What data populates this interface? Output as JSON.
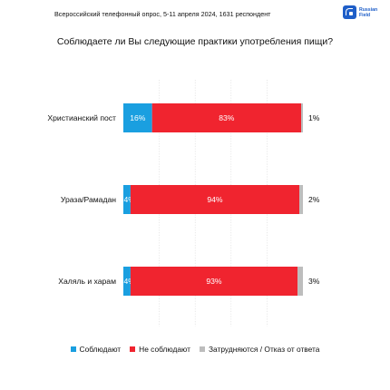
{
  "header": {
    "survey_info": "Всероссийский телефонный опрос, 5-11 апреля 2024, 1631 респондент",
    "logo_line1": "Russian",
    "logo_line2": "Field"
  },
  "chart_data": {
    "type": "bar",
    "orientation": "horizontal",
    "stacked": true,
    "title": "Соблюдаете ли Вы следующие практики употребления пищи?",
    "categories": [
      "Христианский пост",
      "Ураза/Рамадан",
      "Халяль и харам"
    ],
    "series": [
      {
        "name": "Соблюдают",
        "values": [
          16,
          4,
          4
        ],
        "color": "#1a9fe0"
      },
      {
        "name": "Не соблюдают",
        "values": [
          83,
          94,
          93
        ],
        "color": "#f0242f"
      },
      {
        "name": "Затрудняются / Отказ от ответа",
        "values": [
          1,
          2,
          3
        ],
        "color": "#bdbdbd"
      }
    ],
    "xlim": [
      0,
      100
    ],
    "grid": true,
    "legend": "bottom"
  }
}
